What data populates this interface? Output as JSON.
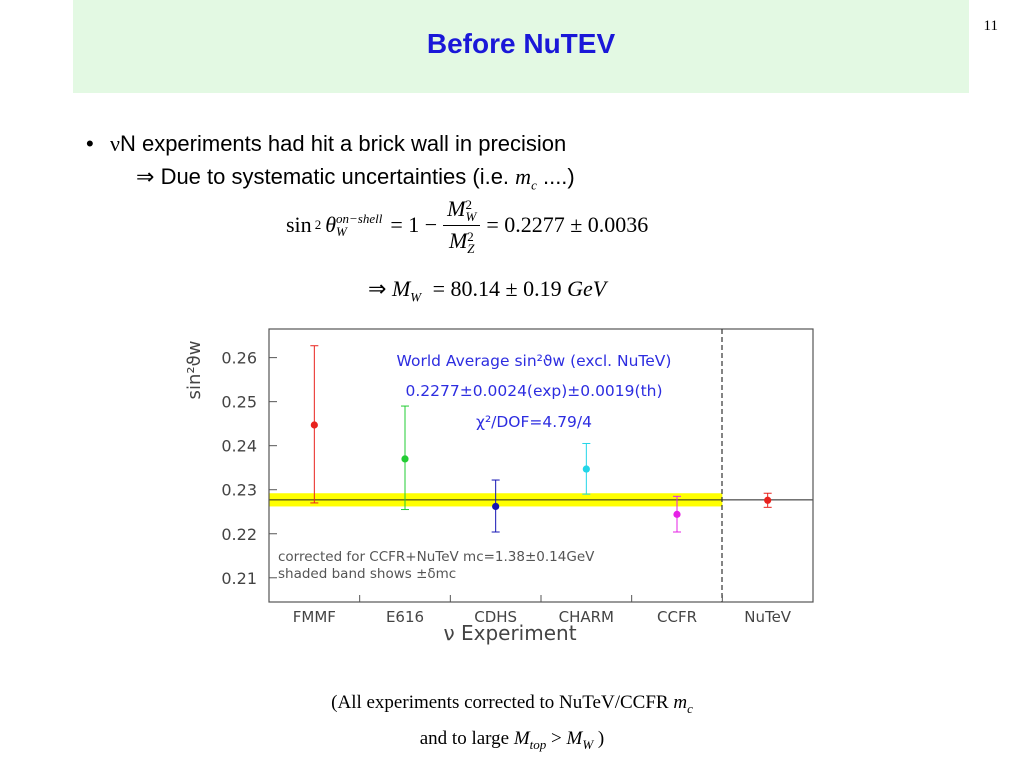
{
  "slide": {
    "number": "11",
    "title": "Before NuTEV",
    "bullet": {
      "symbol": "ν",
      "text": "N experiments had hit a brick wall in precision"
    },
    "sub": {
      "arrow": "⇒",
      "text": "Due to systematic uncertainties (i.e.",
      "var": "m",
      "var_sub": "c",
      "tail": "....)"
    },
    "equation1": {
      "lhs_func": "sin",
      "lhs_pow": "2",
      "lhs_var": "θ",
      "lhs_sup": "on−shell",
      "lhs_sub": "W",
      "eq1": "= 1 −",
      "num_var": "M",
      "num_sup": "2",
      "num_sub": "W",
      "den_var": "M",
      "den_sup": "2",
      "den_sub": "Z",
      "result": "= 0.2277 ± 0.0036"
    },
    "equation2": {
      "arrow": "⇒",
      "var": "M",
      "var_sub": "W",
      "value": "= 80.14 ± 0.19",
      "unit": "GeV"
    },
    "footer": {
      "line1_text": "(All experiments corrected to NuTeV/CCFR",
      "line1_var": "m",
      "line1_sub": "c",
      "line2_text": "and to large",
      "line2_var1": "M",
      "line2_sub1": "top",
      "line2_op": ">",
      "line2_var2": "M",
      "line2_sub2": "W",
      "line2_close": ")"
    }
  },
  "chart_data": {
    "type": "scatter",
    "title": "",
    "xlabel": "ν Experiment",
    "ylabel": "sin²ϑw",
    "ylim": [
      0.2045,
      0.2665
    ],
    "yticks": [
      0.21,
      0.22,
      0.23,
      0.24,
      0.25,
      0.26
    ],
    "categories": [
      "FMMF",
      "E616",
      "CDHS",
      "CHARM",
      "CCFR",
      "NuTeV"
    ],
    "points": [
      {
        "category": "FMMF",
        "y": 0.2447,
        "err_up": 0.018,
        "err_down": 0.0177,
        "color": "#e8221d"
      },
      {
        "category": "E616",
        "y": 0.237,
        "err_up": 0.012,
        "err_down": 0.0115,
        "color": "#22cc33"
      },
      {
        "category": "CDHS",
        "y": 0.2262,
        "err_up": 0.006,
        "err_down": 0.0058,
        "color": "#1414b4"
      },
      {
        "category": "CHARM",
        "y": 0.2347,
        "err_up": 0.0058,
        "err_down": 0.0057,
        "color": "#22d6e8"
      },
      {
        "category": "CCFR",
        "y": 0.2244,
        "err_up": 0.0041,
        "err_down": 0.004,
        "color": "#e621e6"
      },
      {
        "category": "NuTeV",
        "y": 0.2276,
        "err_up": 0.0016,
        "err_down": 0.0016,
        "color": "#e8221d"
      }
    ],
    "world_average_band": {
      "center": 0.2277,
      "low": 0.2262,
      "high": 0.2292,
      "color": "#ffff00"
    },
    "divider_after": "CCFR",
    "annotations": {
      "world_avg_line1": "World Average sin²ϑw (excl. NuTeV)",
      "world_avg_line2": "0.2277±0.0024(exp)±0.0019(th)",
      "world_avg_line3": "χ²/DOF=4.79/4",
      "correction_line1": "corrected for CCFR+NuTeV mc=1.38±0.14GeV",
      "correction_line2": "shaded band shows ±δmc"
    },
    "colors": {
      "annotation": "#2d2de0",
      "axis": "#555555"
    },
    "grid": false,
    "legend": "none"
  }
}
